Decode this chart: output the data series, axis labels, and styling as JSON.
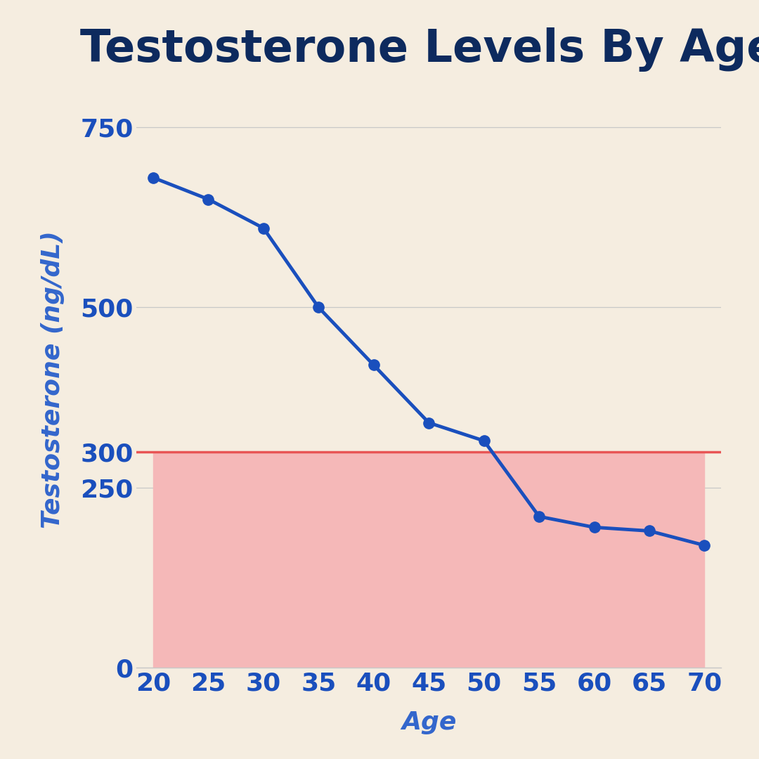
{
  "title": "Testosterone Levels By Age",
  "xlabel": "Age",
  "ylabel": "Testosterone (ng/dL)",
  "ages": [
    20,
    25,
    30,
    35,
    40,
    45,
    50,
    55,
    60,
    65,
    70
  ],
  "testosterone": [
    680,
    650,
    610,
    500,
    420,
    340,
    315,
    210,
    195,
    190,
    170
  ],
  "threshold": 300,
  "ylim": [
    0,
    800
  ],
  "yticks": [
    0,
    250,
    300,
    500,
    750
  ],
  "xticks": [
    20,
    25,
    30,
    35,
    40,
    45,
    50,
    55,
    60,
    65,
    70
  ],
  "line_color": "#1a4fbd",
  "threshold_line_color": "#e85555",
  "threshold_fill_color": "#f5b8b8",
  "background_color": "#f5ede0",
  "grid_color": "#c8c8c8",
  "title_color": "#0d2a5e",
  "axis_label_color": "#3366cc",
  "tick_label_color": "#1a4fbd",
  "title_fontsize": 46,
  "axis_label_fontsize": 26,
  "tick_fontsize": 26,
  "line_width": 3.5,
  "marker_size": 11
}
